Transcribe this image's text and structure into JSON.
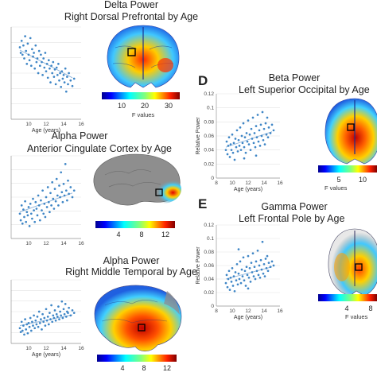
{
  "panels": {
    "A": {
      "letter": "",
      "title1": "Delta Power",
      "title2": "Right Dorsal Prefrontal by Age"
    },
    "B": {
      "letter": "",
      "title1": "Alpha Power",
      "title2": "Anterior Cingulate Cortex by Age"
    },
    "C": {
      "letter": "",
      "title1": "Alpha Power",
      "title2": "Right Middle Temporal by Age"
    },
    "D": {
      "letter": "D",
      "title1": "Beta Power",
      "title2": "Left Superior Occipital by Age"
    },
    "E": {
      "letter": "E",
      "title1": "Gamma Power",
      "title2": "Left Frontal Pole by Age"
    }
  },
  "colorbars": {
    "A": {
      "ticks": [
        "10",
        "20",
        "30"
      ],
      "label": "F values"
    },
    "B": {
      "ticks": [
        "4",
        "8",
        "12"
      ],
      "label": ""
    },
    "C": {
      "ticks": [
        "4",
        "8",
        "12"
      ],
      "label": ""
    },
    "D": {
      "ticks": [
        "5",
        "10"
      ],
      "label": "F values"
    },
    "E": {
      "ticks": [
        "4",
        "8"
      ],
      "label": "F values"
    }
  },
  "chart_data": [
    {
      "id": "A",
      "type": "scatter",
      "xlabel": "Age (years)",
      "ylabel": "",
      "xlim": [
        8,
        16
      ],
      "xticks": [
        "10",
        "12",
        "14",
        "16"
      ],
      "yticks": [],
      "trend": [
        [
          9,
          0.75
        ],
        [
          15,
          0.45
        ]
      ],
      "points": [
        [
          9.0,
          0.78
        ],
        [
          9.1,
          0.72
        ],
        [
          9.2,
          0.85
        ],
        [
          9.3,
          0.7
        ],
        [
          9.4,
          0.8
        ],
        [
          9.5,
          0.66
        ],
        [
          9.6,
          0.9
        ],
        [
          9.7,
          0.74
        ],
        [
          9.8,
          0.6
        ],
        [
          9.9,
          0.82
        ],
        [
          10.0,
          0.7
        ],
        [
          10.1,
          0.64
        ],
        [
          10.2,
          0.88
        ],
        [
          10.3,
          0.58
        ],
        [
          10.4,
          0.76
        ],
        [
          10.5,
          0.68
        ],
        [
          10.6,
          0.72
        ],
        [
          10.7,
          0.55
        ],
        [
          10.8,
          0.8
        ],
        [
          10.9,
          0.62
        ],
        [
          11.0,
          0.66
        ],
        [
          11.1,
          0.5
        ],
        [
          11.2,
          0.74
        ],
        [
          11.3,
          0.58
        ],
        [
          11.4,
          0.7
        ],
        [
          11.5,
          0.62
        ],
        [
          11.6,
          0.48
        ],
        [
          11.7,
          0.66
        ],
        [
          11.8,
          0.56
        ],
        [
          11.9,
          0.72
        ],
        [
          12.0,
          0.52
        ],
        [
          12.1,
          0.6
        ],
        [
          12.2,
          0.45
        ],
        [
          12.3,
          0.64
        ],
        [
          12.4,
          0.55
        ],
        [
          12.5,
          0.4
        ],
        [
          12.6,
          0.58
        ],
        [
          12.7,
          0.5
        ],
        [
          12.8,
          0.62
        ],
        [
          12.9,
          0.46
        ],
        [
          13.0,
          0.54
        ],
        [
          13.1,
          0.38
        ],
        [
          13.2,
          0.56
        ],
        [
          13.3,
          0.48
        ],
        [
          13.4,
          0.6
        ],
        [
          13.5,
          0.42
        ],
        [
          13.6,
          0.5
        ],
        [
          13.7,
          0.35
        ],
        [
          13.8,
          0.52
        ],
        [
          13.9,
          0.44
        ],
        [
          14.0,
          0.48
        ],
        [
          14.1,
          0.4
        ],
        [
          14.2,
          0.55
        ],
        [
          14.3,
          0.3
        ],
        [
          14.4,
          0.46
        ],
        [
          14.5,
          0.38
        ],
        [
          14.6,
          0.5
        ],
        [
          14.8,
          0.42
        ],
        [
          15.0,
          0.36
        ],
        [
          15.2,
          0.44
        ]
      ]
    },
    {
      "id": "B",
      "type": "scatter",
      "xlabel": "",
      "ylabel": "",
      "xlim": [
        8,
        16
      ],
      "xticks": [
        "10",
        "12",
        "14",
        "16"
      ],
      "yticks": [],
      "trend": [
        [
          9,
          0.32
        ],
        [
          15,
          0.55
        ]
      ],
      "points": [
        [
          9.0,
          0.3
        ],
        [
          9.1,
          0.22
        ],
        [
          9.2,
          0.4
        ],
        [
          9.3,
          0.18
        ],
        [
          9.4,
          0.35
        ],
        [
          9.5,
          0.26
        ],
        [
          9.6,
          0.45
        ],
        [
          9.7,
          0.2
        ],
        [
          9.8,
          0.32
        ],
        [
          9.9,
          0.28
        ],
        [
          10.0,
          0.38
        ],
        [
          10.1,
          0.15
        ],
        [
          10.2,
          0.42
        ],
        [
          10.3,
          0.3
        ],
        [
          10.4,
          0.24
        ],
        [
          10.5,
          0.48
        ],
        [
          10.6,
          0.34
        ],
        [
          10.7,
          0.2
        ],
        [
          10.8,
          0.44
        ],
        [
          10.9,
          0.36
        ],
        [
          11.0,
          0.28
        ],
        [
          11.1,
          0.52
        ],
        [
          11.2,
          0.4
        ],
        [
          11.3,
          0.22
        ],
        [
          11.4,
          0.46
        ],
        [
          11.5,
          0.34
        ],
        [
          11.6,
          0.58
        ],
        [
          11.7,
          0.3
        ],
        [
          11.8,
          0.42
        ],
        [
          11.9,
          0.26
        ],
        [
          12.0,
          0.5
        ],
        [
          12.1,
          0.38
        ],
        [
          12.2,
          0.62
        ],
        [
          12.3,
          0.44
        ],
        [
          12.4,
          0.32
        ],
        [
          12.5,
          0.55
        ],
        [
          12.6,
          0.4
        ],
        [
          12.7,
          0.68
        ],
        [
          12.8,
          0.48
        ],
        [
          12.9,
          0.36
        ],
        [
          13.0,
          0.6
        ],
        [
          13.1,
          0.45
        ],
        [
          13.2,
          0.72
        ],
        [
          13.3,
          0.52
        ],
        [
          13.4,
          0.4
        ],
        [
          13.5,
          0.64
        ],
        [
          13.6,
          0.5
        ],
        [
          13.7,
          0.8
        ],
        [
          13.8,
          0.56
        ],
        [
          13.9,
          0.44
        ],
        [
          14.0,
          0.66
        ],
        [
          14.1,
          0.52
        ],
        [
          14.2,
          0.9
        ],
        [
          14.3,
          0.58
        ],
        [
          14.4,
          0.46
        ],
        [
          14.5,
          0.7
        ],
        [
          14.6,
          0.54
        ],
        [
          14.8,
          0.62
        ],
        [
          15.0,
          0.5
        ],
        [
          15.2,
          0.58
        ]
      ]
    },
    {
      "id": "C",
      "type": "scatter",
      "xlabel": "Age (years)",
      "ylabel": "",
      "xlim": [
        8,
        16
      ],
      "xticks": [
        "10",
        "12",
        "14",
        "16"
      ],
      "yticks": [],
      "trend": [
        [
          9,
          0.28
        ],
        [
          15,
          0.45
        ]
      ],
      "points": [
        [
          9.0,
          0.24
        ],
        [
          9.1,
          0.18
        ],
        [
          9.2,
          0.34
        ],
        [
          9.3,
          0.2
        ],
        [
          9.4,
          0.28
        ],
        [
          9.5,
          0.14
        ],
        [
          9.6,
          0.38
        ],
        [
          9.7,
          0.22
        ],
        [
          9.8,
          0.3
        ],
        [
          9.9,
          0.16
        ],
        [
          10.0,
          0.32
        ],
        [
          10.1,
          0.26
        ],
        [
          10.2,
          0.4
        ],
        [
          10.3,
          0.2
        ],
        [
          10.4,
          0.34
        ],
        [
          10.5,
          0.28
        ],
        [
          10.6,
          0.44
        ],
        [
          10.7,
          0.24
        ],
        [
          10.8,
          0.36
        ],
        [
          10.9,
          0.3
        ],
        [
          11.0,
          0.42
        ],
        [
          11.1,
          0.26
        ],
        [
          11.2,
          0.5
        ],
        [
          11.3,
          0.32
        ],
        [
          11.4,
          0.38
        ],
        [
          11.5,
          0.22
        ],
        [
          11.6,
          0.46
        ],
        [
          11.7,
          0.34
        ],
        [
          11.8,
          0.4
        ],
        [
          11.9,
          0.28
        ],
        [
          12.0,
          0.54
        ],
        [
          12.1,
          0.36
        ],
        [
          12.2,
          0.42
        ],
        [
          12.3,
          0.3
        ],
        [
          12.4,
          0.48
        ],
        [
          12.5,
          0.38
        ],
        [
          12.6,
          0.6
        ],
        [
          12.7,
          0.34
        ],
        [
          12.8,
          0.44
        ],
        [
          12.9,
          0.4
        ],
        [
          13.0,
          0.52
        ],
        [
          13.1,
          0.36
        ],
        [
          13.2,
          0.46
        ],
        [
          13.3,
          0.42
        ],
        [
          13.4,
          0.58
        ],
        [
          13.5,
          0.38
        ],
        [
          13.6,
          0.5
        ],
        [
          13.7,
          0.44
        ],
        [
          13.8,
          0.66
        ],
        [
          13.9,
          0.4
        ],
        [
          14.0,
          0.54
        ],
        [
          14.1,
          0.46
        ],
        [
          14.2,
          0.62
        ],
        [
          14.3,
          0.42
        ],
        [
          14.4,
          0.5
        ],
        [
          14.5,
          0.48
        ],
        [
          14.6,
          0.56
        ],
        [
          14.8,
          0.44
        ],
        [
          15.0,
          0.52
        ],
        [
          15.2,
          0.48
        ]
      ]
    },
    {
      "id": "D",
      "type": "scatter",
      "xlabel": "Age (years)",
      "ylabel": "Relative Power",
      "xlim": [
        8,
        16
      ],
      "xticks": [
        "8",
        "10",
        "12",
        "14",
        "16"
      ],
      "ylim": [
        0,
        0.12
      ],
      "yticks": [
        "0",
        "0.02",
        "0.04",
        "0.06",
        "0.08",
        "0.1",
        "0.12"
      ],
      "trend": [
        [
          9.2,
          0.044
        ],
        [
          15.0,
          0.066
        ]
      ],
      "points": [
        [
          9.2,
          0.04
        ],
        [
          9.3,
          0.052
        ],
        [
          9.4,
          0.034
        ],
        [
          9.5,
          0.046
        ],
        [
          9.6,
          0.058
        ],
        [
          9.7,
          0.03
        ],
        [
          9.8,
          0.048
        ],
        [
          9.9,
          0.04
        ],
        [
          10.0,
          0.062
        ],
        [
          10.1,
          0.036
        ],
        [
          10.2,
          0.05
        ],
        [
          10.3,
          0.026
        ],
        [
          10.4,
          0.056
        ],
        [
          10.5,
          0.044
        ],
        [
          10.6,
          0.068
        ],
        [
          10.7,
          0.038
        ],
        [
          10.8,
          0.054
        ],
        [
          10.9,
          0.046
        ],
        [
          11.0,
          0.072
        ],
        [
          11.1,
          0.04
        ],
        [
          11.2,
          0.06
        ],
        [
          11.3,
          0.05
        ],
        [
          11.4,
          0.078
        ],
        [
          11.5,
          0.044
        ],
        [
          11.6,
          0.058
        ],
        [
          11.7,
          0.036
        ],
        [
          11.8,
          0.064
        ],
        [
          11.9,
          0.052
        ],
        [
          12.0,
          0.082
        ],
        [
          12.1,
          0.048
        ],
        [
          12.2,
          0.062
        ],
        [
          12.3,
          0.04
        ],
        [
          12.4,
          0.07
        ],
        [
          12.5,
          0.056
        ],
        [
          12.6,
          0.086
        ],
        [
          12.7,
          0.05
        ],
        [
          12.8,
          0.064
        ],
        [
          12.9,
          0.044
        ],
        [
          13.0,
          0.074
        ],
        [
          13.1,
          0.058
        ],
        [
          13.2,
          0.09
        ],
        [
          13.3,
          0.052
        ],
        [
          13.4,
          0.068
        ],
        [
          13.5,
          0.046
        ],
        [
          13.6,
          0.076
        ],
        [
          13.7,
          0.06
        ],
        [
          13.8,
          0.094
        ],
        [
          13.9,
          0.054
        ],
        [
          14.0,
          0.07
        ],
        [
          14.1,
          0.048
        ],
        [
          14.2,
          0.078
        ],
        [
          14.3,
          0.062
        ],
        [
          14.4,
          0.086
        ],
        [
          14.5,
          0.058
        ],
        [
          14.6,
          0.072
        ],
        [
          14.8,
          0.064
        ],
        [
          15.0,
          0.076
        ],
        [
          15.2,
          0.068
        ],
        [
          11.5,
          0.028
        ],
        [
          13.0,
          0.032
        ]
      ]
    },
    {
      "id": "E",
      "type": "scatter",
      "xlabel": "Age (years)",
      "ylabel": "Relative Power",
      "xlim": [
        8,
        16
      ],
      "xticks": [
        "8",
        "10",
        "12",
        "14",
        "16"
      ],
      "ylim": [
        0,
        0.12
      ],
      "yticks": [
        "0",
        "0.02",
        "0.04",
        "0.06",
        "0.08",
        "0.1",
        "0.12"
      ],
      "trend": [
        [
          9.2,
          0.04
        ],
        [
          15.0,
          0.058
        ]
      ],
      "points": [
        [
          9.2,
          0.034
        ],
        [
          9.3,
          0.046
        ],
        [
          9.4,
          0.028
        ],
        [
          9.5,
          0.04
        ],
        [
          9.6,
          0.052
        ],
        [
          9.7,
          0.024
        ],
        [
          9.8,
          0.042
        ],
        [
          9.9,
          0.036
        ],
        [
          10.0,
          0.056
        ],
        [
          10.1,
          0.03
        ],
        [
          10.2,
          0.044
        ],
        [
          10.3,
          0.022
        ],
        [
          10.4,
          0.05
        ],
        [
          10.5,
          0.038
        ],
        [
          10.6,
          0.062
        ],
        [
          10.7,
          0.032
        ],
        [
          10.8,
          0.048
        ],
        [
          10.9,
          0.04
        ],
        [
          11.0,
          0.066
        ],
        [
          11.1,
          0.034
        ],
        [
          11.2,
          0.054
        ],
        [
          11.3,
          0.044
        ],
        [
          11.4,
          0.072
        ],
        [
          11.5,
          0.038
        ],
        [
          11.6,
          0.052
        ],
        [
          11.7,
          0.03
        ],
        [
          11.8,
          0.058
        ],
        [
          11.9,
          0.046
        ],
        [
          12.0,
          0.074
        ],
        [
          12.1,
          0.042
        ],
        [
          12.2,
          0.056
        ],
        [
          12.3,
          0.036
        ],
        [
          12.4,
          0.064
        ],
        [
          12.5,
          0.05
        ],
        [
          12.6,
          0.078
        ],
        [
          12.7,
          0.044
        ],
        [
          12.8,
          0.058
        ],
        [
          12.9,
          0.04
        ],
        [
          13.0,
          0.066
        ],
        [
          13.1,
          0.052
        ],
        [
          13.2,
          0.082
        ],
        [
          13.3,
          0.046
        ],
        [
          13.4,
          0.06
        ],
        [
          13.5,
          0.042
        ],
        [
          13.6,
          0.068
        ],
        [
          13.7,
          0.054
        ],
        [
          13.8,
          0.095
        ],
        [
          13.9,
          0.048
        ],
        [
          14.0,
          0.062
        ],
        [
          14.1,
          0.044
        ],
        [
          14.2,
          0.07
        ],
        [
          14.3,
          0.056
        ],
        [
          14.4,
          0.074
        ],
        [
          14.5,
          0.052
        ],
        [
          14.6,
          0.064
        ],
        [
          14.8,
          0.058
        ],
        [
          15.0,
          0.066
        ],
        [
          15.2,
          0.06
        ],
        [
          10.8,
          0.084
        ],
        [
          12.0,
          0.026
        ]
      ]
    }
  ]
}
